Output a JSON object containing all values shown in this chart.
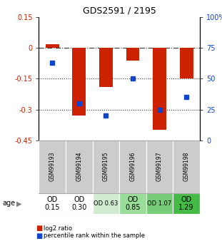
{
  "title": "GDS2591 / 2195",
  "samples": [
    "GSM99193",
    "GSM99194",
    "GSM99195",
    "GSM99196",
    "GSM99197",
    "GSM99198"
  ],
  "log2_ratios": [
    0.02,
    -0.33,
    -0.19,
    -0.06,
    -0.4,
    -0.15
  ],
  "percentile_ranks": [
    63,
    30,
    20,
    50,
    25,
    35
  ],
  "bar_color": "#cc2200",
  "dot_color": "#1144cc",
  "ylim_left": [
    -0.45,
    0.15
  ],
  "ylim_right": [
    0,
    100
  ],
  "yticks_left": [
    0.15,
    0.0,
    -0.15,
    -0.3,
    -0.45
  ],
  "yticks_left_labels": [
    "0.15",
    "0",
    "-0.15",
    "-0.3",
    "-0.45"
  ],
  "yticks_right": [
    100,
    75,
    50,
    25,
    0
  ],
  "yticks_right_labels": [
    "100%",
    "75",
    "50",
    "25",
    "0"
  ],
  "age_labels": [
    "OD\n0.15",
    "OD\n0.30",
    "OD 0.63",
    "OD\n0.85",
    "OD 1.07",
    "OD\n1.29"
  ],
  "age_bg_colors": [
    "#ffffff",
    "#ffffff",
    "#d0ecd0",
    "#99dd99",
    "#77cc77",
    "#44bb44"
  ],
  "age_label_fontsize": [
    7,
    7,
    6,
    7,
    6,
    7
  ],
  "gsm_bg_color": "#cccccc",
  "legend_red_label": "log2 ratio",
  "legend_blue_label": "percentile rank within the sample",
  "bar_width": 0.5
}
